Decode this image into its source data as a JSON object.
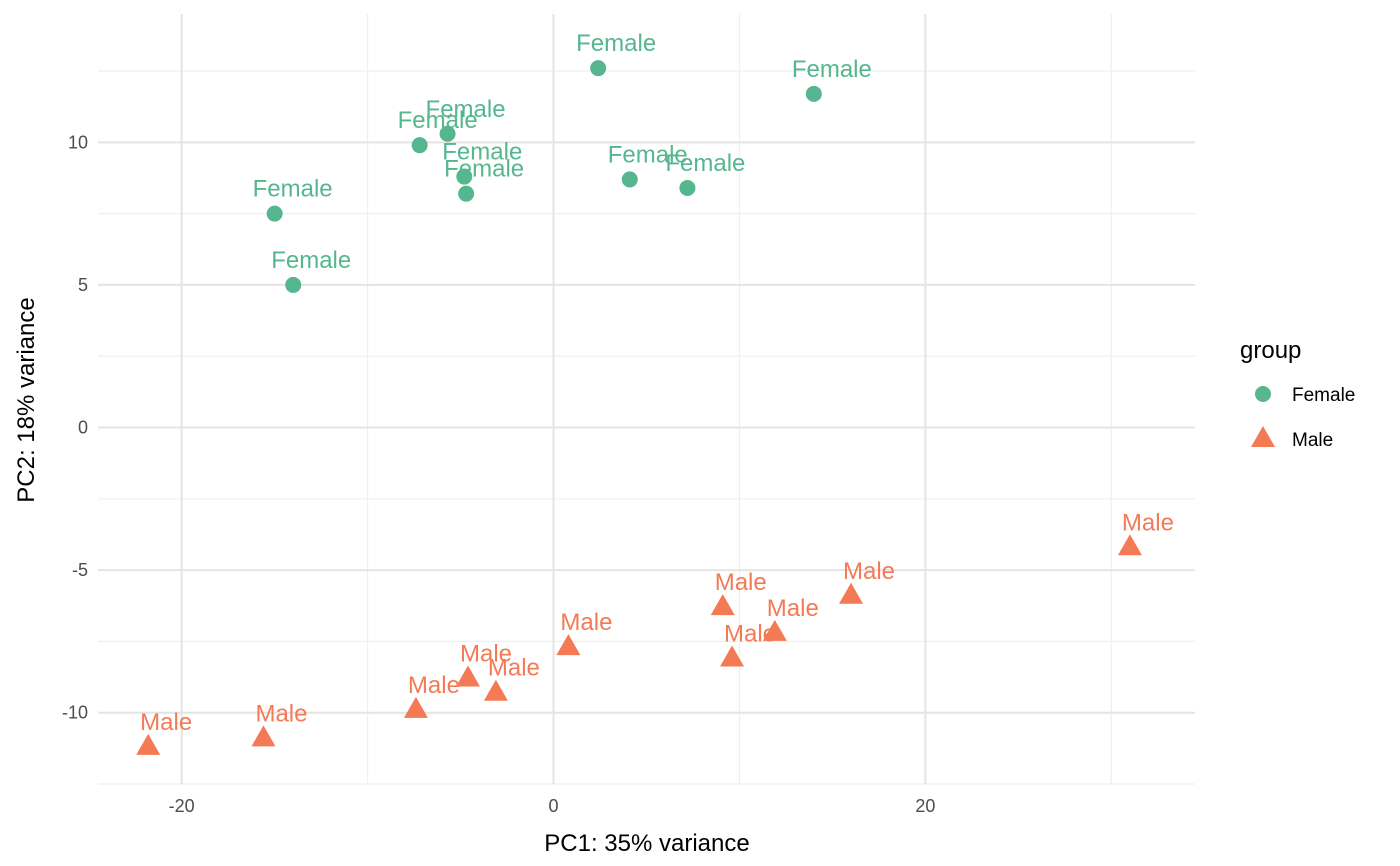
{
  "chart_data": {
    "type": "scatter",
    "xlabel": "PC1: 35% variance",
    "ylabel": "PC2: 18% variance",
    "xlim": [
      -24.5,
      34.5
    ],
    "ylim": [
      -12.5,
      14.5
    ],
    "x_major_ticks": [
      -20,
      0,
      20
    ],
    "x_minor_ticks": [
      -10,
      10,
      30
    ],
    "y_major_ticks": [
      -10,
      -5,
      0,
      5,
      10
    ],
    "y_minor_ticks": [
      -12.5,
      -7.5,
      -2.5,
      2.5,
      7.5,
      12.5
    ],
    "grid": true,
    "legend": {
      "title": "group",
      "placement": "right",
      "entries": [
        {
          "label": "Female",
          "shape": "circle",
          "color": "#55b68f"
        },
        {
          "label": "Male",
          "shape": "triangle",
          "color": "#f47a55"
        }
      ]
    },
    "series": [
      {
        "name": "Female",
        "shape": "circle",
        "color": "#55b68f",
        "points": [
          {
            "x": 2.4,
            "y": 12.6,
            "label": "Female"
          },
          {
            "x": 14.0,
            "y": 11.7,
            "label": "Female"
          },
          {
            "x": -5.7,
            "y": 10.3,
            "label": "Female"
          },
          {
            "x": -7.2,
            "y": 9.9,
            "label": "Female"
          },
          {
            "x": -4.8,
            "y": 8.8,
            "label": "Female"
          },
          {
            "x": -4.7,
            "y": 8.2,
            "label": "Female"
          },
          {
            "x": 4.1,
            "y": 8.7,
            "label": "Female"
          },
          {
            "x": 7.2,
            "y": 8.4,
            "label": "Female"
          },
          {
            "x": -15.0,
            "y": 7.5,
            "label": "Female"
          },
          {
            "x": -14.0,
            "y": 5.0,
            "label": "Female"
          }
        ]
      },
      {
        "name": "Male",
        "shape": "triangle",
        "color": "#f47a55",
        "points": [
          {
            "x": 31.0,
            "y": -4.2,
            "label": "Male"
          },
          {
            "x": 16.0,
            "y": -5.9,
            "label": "Male"
          },
          {
            "x": 9.1,
            "y": -6.3,
            "label": "Male"
          },
          {
            "x": 11.9,
            "y": -7.2,
            "label": "Male"
          },
          {
            "x": 9.6,
            "y": -8.1,
            "label": "Male"
          },
          {
            "x": 0.8,
            "y": -7.7,
            "label": "Male"
          },
          {
            "x": -4.6,
            "y": -8.8,
            "label": "Male"
          },
          {
            "x": -3.1,
            "y": -9.3,
            "label": "Male"
          },
          {
            "x": -7.4,
            "y": -9.9,
            "label": "Male"
          },
          {
            "x": -15.6,
            "y": -10.9,
            "label": "Male"
          },
          {
            "x": -21.8,
            "y": -11.2,
            "label": "Male"
          }
        ]
      }
    ]
  }
}
